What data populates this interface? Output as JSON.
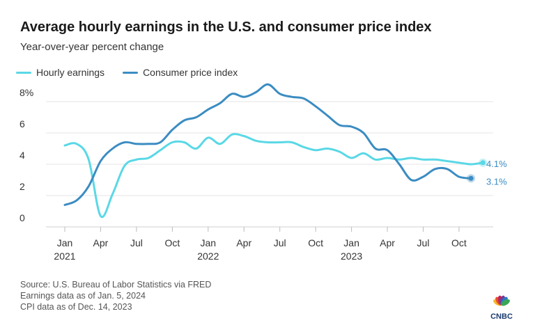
{
  "header": {
    "title": "Average hourly earnings in the U.S. and consumer price index",
    "subtitle": "Year-over-year percent change"
  },
  "legend": {
    "earnings_label": "Hourly earnings",
    "cpi_label": "Consumer price index"
  },
  "source": {
    "line1": "Source: U.S. Bureau of Labor Statistics via FRED",
    "line2": "Earnings data as of Jan. 5, 2024",
    "line3": "CPI data as of Dec. 14, 2023"
  },
  "logo": {
    "text": "CNBC",
    "colors": [
      "#f5b82e",
      "#e8532d",
      "#c0245f",
      "#6f3f95",
      "#2a7bc1",
      "#3aa757"
    ]
  },
  "chart_data": {
    "type": "line",
    "title": "Average hourly earnings in the U.S. and consumer price index",
    "subtitle": "Year-over-year percent change",
    "ylim": [
      0,
      9
    ],
    "y_ticks": [
      {
        "value": 0,
        "label": "0"
      },
      {
        "value": 2,
        "label": "2"
      },
      {
        "value": 4,
        "label": "4"
      },
      {
        "value": 6,
        "label": "6"
      },
      {
        "value": 8,
        "label": "8%"
      }
    ],
    "x_ticks": [
      {
        "month": "2021-01",
        "label": "Jan",
        "year": "2021"
      },
      {
        "month": "2021-04",
        "label": "Apr",
        "year": ""
      },
      {
        "month": "2021-07",
        "label": "Jul",
        "year": ""
      },
      {
        "month": "2021-10",
        "label": "Oct",
        "year": ""
      },
      {
        "month": "2022-01",
        "label": "Jan",
        "year": "2022"
      },
      {
        "month": "2022-04",
        "label": "Apr",
        "year": ""
      },
      {
        "month": "2022-07",
        "label": "Jul",
        "year": ""
      },
      {
        "month": "2022-10",
        "label": "Oct",
        "year": ""
      },
      {
        "month": "2023-01",
        "label": "Jan",
        "year": "2023"
      },
      {
        "month": "2023-04",
        "label": "Apr",
        "year": ""
      },
      {
        "month": "2023-07",
        "label": "Jul",
        "year": ""
      },
      {
        "month": "2023-10",
        "label": "Oct",
        "year": ""
      }
    ],
    "grid": true,
    "legend_position": "top-left",
    "series": [
      {
        "name": "Hourly earnings",
        "color": "#5ad8e6",
        "end_label": "4.1%",
        "points": [
          [
            "2021-01",
            5.2
          ],
          [
            "2021-02",
            5.3
          ],
          [
            "2021-03",
            4.3
          ],
          [
            "2021-04",
            0.7
          ],
          [
            "2021-05",
            2.1
          ],
          [
            "2021-06",
            3.9
          ],
          [
            "2021-07",
            4.3
          ],
          [
            "2021-08",
            4.4
          ],
          [
            "2021-09",
            4.9
          ],
          [
            "2021-10",
            5.4
          ],
          [
            "2021-11",
            5.4
          ],
          [
            "2021-12",
            5.0
          ],
          [
            "2022-01",
            5.7
          ],
          [
            "2022-02",
            5.3
          ],
          [
            "2022-03",
            5.9
          ],
          [
            "2022-04",
            5.8
          ],
          [
            "2022-05",
            5.5
          ],
          [
            "2022-06",
            5.4
          ],
          [
            "2022-07",
            5.4
          ],
          [
            "2022-08",
            5.4
          ],
          [
            "2022-09",
            5.1
          ],
          [
            "2022-10",
            4.9
          ],
          [
            "2022-11",
            5.0
          ],
          [
            "2022-12",
            4.8
          ],
          [
            "2023-01",
            4.4
          ],
          [
            "2023-02",
            4.7
          ],
          [
            "2023-03",
            4.3
          ],
          [
            "2023-04",
            4.4
          ],
          [
            "2023-05",
            4.3
          ],
          [
            "2023-06",
            4.4
          ],
          [
            "2023-07",
            4.3
          ],
          [
            "2023-08",
            4.3
          ],
          [
            "2023-09",
            4.2
          ],
          [
            "2023-10",
            4.1
          ],
          [
            "2023-11",
            4.0
          ],
          [
            "2023-12",
            4.1
          ]
        ]
      },
      {
        "name": "Consumer price index",
        "color": "#3b8cc2",
        "end_label": "3.1%",
        "points": [
          [
            "2021-01",
            1.4
          ],
          [
            "2021-02",
            1.7
          ],
          [
            "2021-03",
            2.6
          ],
          [
            "2021-04",
            4.2
          ],
          [
            "2021-05",
            5.0
          ],
          [
            "2021-06",
            5.4
          ],
          [
            "2021-07",
            5.3
          ],
          [
            "2021-08",
            5.3
          ],
          [
            "2021-09",
            5.4
          ],
          [
            "2021-10",
            6.2
          ],
          [
            "2021-11",
            6.8
          ],
          [
            "2021-12",
            7.0
          ],
          [
            "2022-01",
            7.5
          ],
          [
            "2022-02",
            7.9
          ],
          [
            "2022-03",
            8.5
          ],
          [
            "2022-04",
            8.3
          ],
          [
            "2022-05",
            8.6
          ],
          [
            "2022-06",
            9.1
          ],
          [
            "2022-07",
            8.5
          ],
          [
            "2022-08",
            8.3
          ],
          [
            "2022-09",
            8.2
          ],
          [
            "2022-10",
            7.7
          ],
          [
            "2022-11",
            7.1
          ],
          [
            "2022-12",
            6.5
          ],
          [
            "2023-01",
            6.4
          ],
          [
            "2023-02",
            6.0
          ],
          [
            "2023-03",
            5.0
          ],
          [
            "2023-04",
            4.9
          ],
          [
            "2023-05",
            4.0
          ],
          [
            "2023-06",
            3.0
          ],
          [
            "2023-07",
            3.2
          ],
          [
            "2023-08",
            3.7
          ],
          [
            "2023-09",
            3.7
          ],
          [
            "2023-10",
            3.2
          ],
          [
            "2023-11",
            3.1
          ]
        ]
      }
    ]
  }
}
